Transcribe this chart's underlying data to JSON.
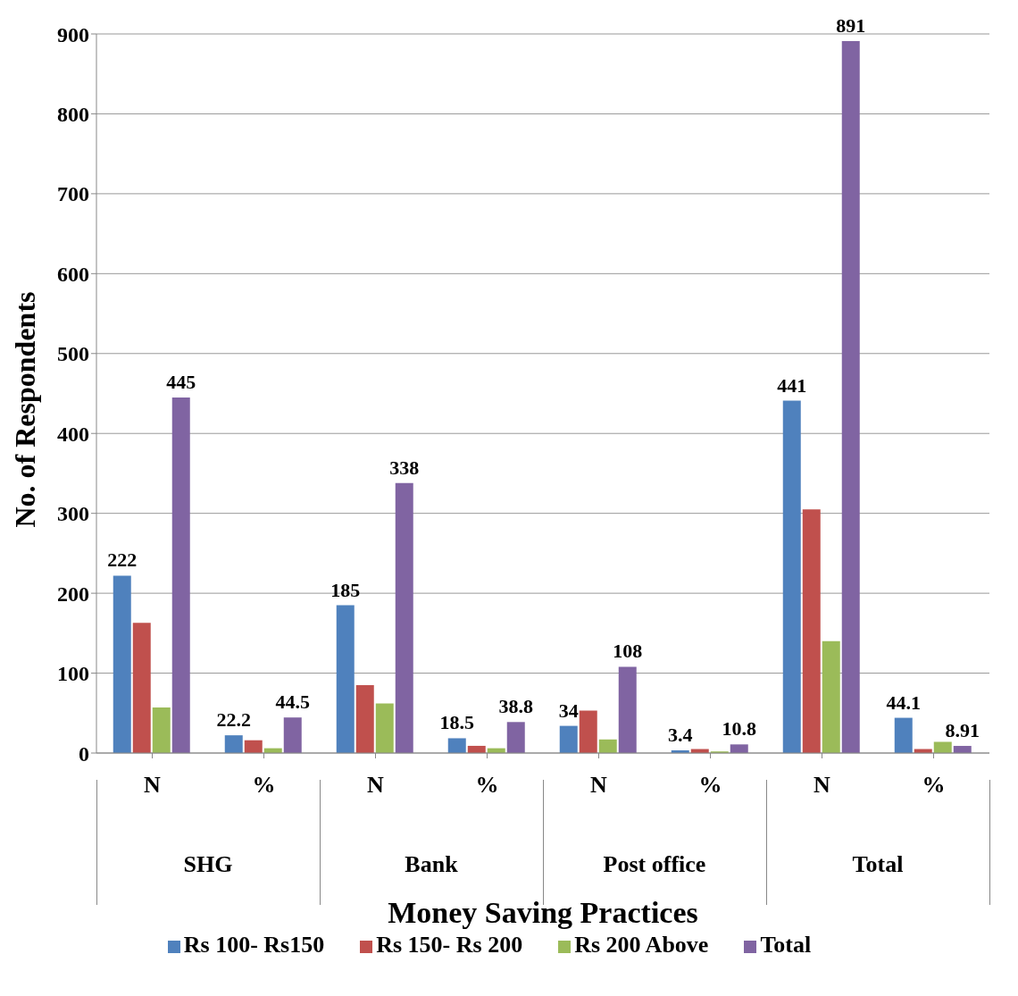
{
  "chart_data": {
    "type": "bar",
    "xlabel": "Money Saving Practices",
    "ylabel": "No. of Respondents",
    "categories": [
      "N",
      "%",
      "N",
      "%",
      "N",
      "%",
      "N",
      "%"
    ],
    "annotations": [
      "SHG",
      "Bank",
      "Post office",
      "Total"
    ],
    "series": [
      {
        "name": "Rs 100- Rs150",
        "color": "#4f81bd",
        "values": [
          222,
          22.2,
          185,
          18.5,
          34,
          3.4,
          441,
          44.1
        ],
        "value_labels": [
          "222",
          "22.2",
          "185",
          "18.5",
          "34",
          "3.4",
          "441",
          "44.1"
        ]
      },
      {
        "name": "Rs 150- Rs 200",
        "color": "#c0504d",
        "values": [
          163,
          16,
          85,
          9,
          53,
          5,
          305,
          5
        ]
      },
      {
        "name": "Rs 200 Above",
        "color": "#9bbb59",
        "values": [
          57,
          6,
          62,
          6,
          17,
          2,
          140,
          14
        ]
      },
      {
        "name": "Total",
        "color": "#8064a2",
        "values": [
          445,
          44.5,
          338,
          38.8,
          108,
          10.8,
          891,
          8.91
        ],
        "value_labels": [
          "445",
          "44.5",
          "338",
          "38.8",
          "108",
          "10.8",
          "891",
          "8.91"
        ]
      }
    ],
    "ylim": [
      0,
      900
    ],
    "yticks": [
      0,
      100,
      200,
      300,
      400,
      500,
      600,
      700,
      800,
      900
    ],
    "grid": "y",
    "legend": "bottom"
  }
}
